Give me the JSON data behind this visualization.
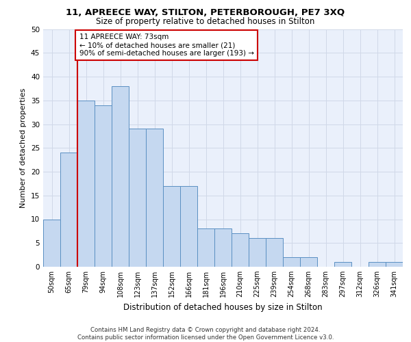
{
  "title_line1": "11, APREECE WAY, STILTON, PETERBOROUGH, PE7 3XQ",
  "title_line2": "Size of property relative to detached houses in Stilton",
  "xlabel": "Distribution of detached houses by size in Stilton",
  "ylabel": "Number of detached properties",
  "categories": [
    "50sqm",
    "65sqm",
    "79sqm",
    "94sqm",
    "108sqm",
    "123sqm",
    "137sqm",
    "152sqm",
    "166sqm",
    "181sqm",
    "196sqm",
    "210sqm",
    "225sqm",
    "239sqm",
    "254sqm",
    "268sqm",
    "283sqm",
    "297sqm",
    "312sqm",
    "326sqm",
    "341sqm"
  ],
  "values": [
    10,
    24,
    35,
    34,
    38,
    29,
    29,
    17,
    17,
    8,
    8,
    7,
    6,
    6,
    2,
    2,
    0,
    1,
    0,
    1,
    1
  ],
  "bar_color": "#c5d8f0",
  "bar_edge_color": "#5a8fc2",
  "grid_color": "#d0d8e8",
  "background_color": "#eaf0fb",
  "vline_x": 1.5,
  "vline_color": "#cc0000",
  "annotation_text": "11 APREECE WAY: 73sqm\n← 10% of detached houses are smaller (21)\n90% of semi-detached houses are larger (193) →",
  "annotation_box_color": "#ffffff",
  "annotation_box_edge": "#cc0000",
  "ylim": [
    0,
    50
  ],
  "yticks": [
    0,
    5,
    10,
    15,
    20,
    25,
    30,
    35,
    40,
    45,
    50
  ],
  "footer": "Contains HM Land Registry data © Crown copyright and database right 2024.\nContains public sector information licensed under the Open Government Licence v3.0."
}
